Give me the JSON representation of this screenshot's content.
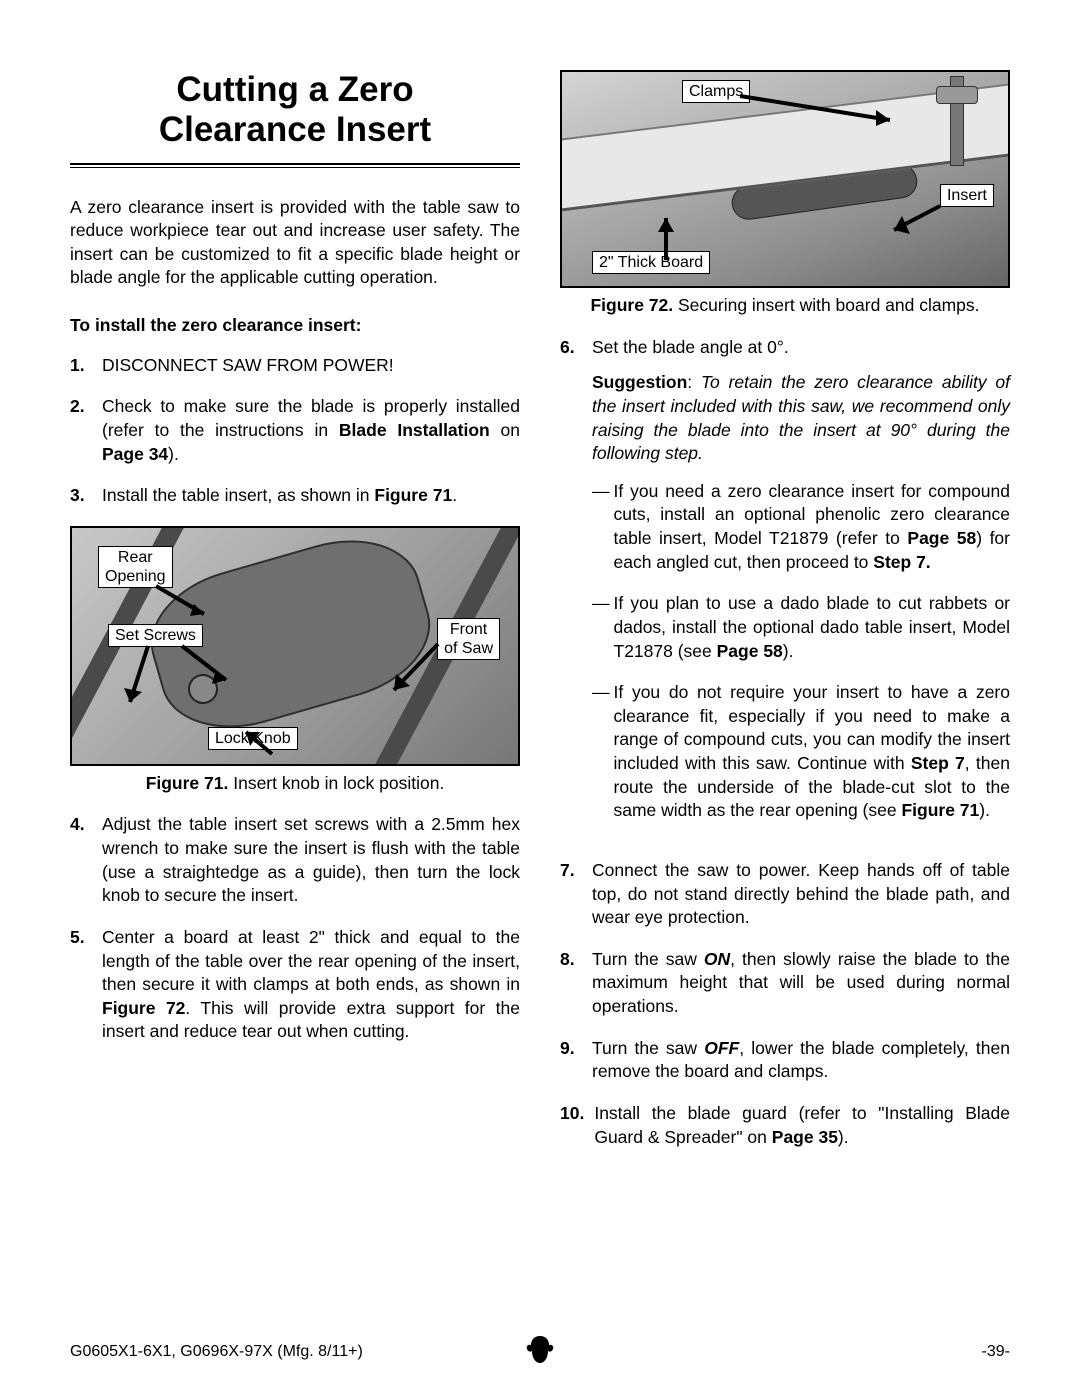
{
  "title_line1": "Cutting a Zero",
  "title_line2": "Clearance Insert",
  "intro": "A zero clearance insert is provided with the table saw to reduce workpiece tear out and increase user safety. The insert can be customized to fit a specific blade height or blade angle for the applicable cutting operation.",
  "lead": "To install the zero clearance insert:",
  "steps_left": [
    {
      "n": "1.",
      "html": "DISCONNECT SAW FROM POWER!"
    },
    {
      "n": "2.",
      "html": "Check to make sure the blade is properly installed (refer to the instructions in <b>Blade Installation</b> on <b>Page 34</b>)."
    },
    {
      "n": "3.",
      "html": "Install the table insert, as shown in <b>Figure 71</b>."
    }
  ],
  "fig71": {
    "labels": {
      "rear": "Rear\nOpening",
      "set": "Set Screws",
      "lock": "Lock Knob",
      "front": "Front\nof Saw"
    },
    "caption_b": "Figure 71.",
    "caption": " Insert knob in lock position."
  },
  "steps_left2": [
    {
      "n": "4.",
      "html": "Adjust the table insert set screws with a 2.5mm hex wrench to make sure the insert is flush with the table (use a straightedge as a guide), then turn the lock knob to secure the insert."
    },
    {
      "n": "5.",
      "html": "Center a board at least 2\" thick and equal to the length of the table over the rear opening of the insert, then secure it with clamps at both ends, as shown in <b>Figure 72</b>. This will provide extra support for the insert and reduce tear out when cutting."
    }
  ],
  "fig72": {
    "labels": {
      "clamps": "Clamps",
      "insert": "Insert",
      "board": "2\" Thick Board"
    },
    "caption_b": "Figure 72.",
    "caption": " Securing insert with board and clamps."
  },
  "step6": {
    "n": "6.",
    "html": "Set the blade angle at 0°."
  },
  "suggestion": "<b>Suggestion</b>: <i>To retain the zero clearance ability of the insert included with this saw, we recommend only raising the blade into the insert at 90° during the following step.</i>",
  "dashes": [
    "If you need a zero clearance insert for compound cuts, install an optional phenolic zero clearance table insert, Model T21879 (refer to <b>Page 58</b>) for each angled cut, then proceed to <b>Step 7.</b>",
    "If you plan to use a dado blade to cut rabbets or dados, install the optional dado table insert, Model T21878 (see <b>Page 58</b>).",
    "If you do not require your insert to have a zero clearance fit, especially if you need to make a range of compound cuts, you can modify the insert included with this saw. Continue with <b>Step 7</b>, then route the underside of the blade-cut slot to the same width as the rear opening (see <b>Figure 71</b>)."
  ],
  "steps_right": [
    {
      "n": "7.",
      "html": "Connect the saw to power. Keep hands off of table top, do not stand directly behind the blade path, and wear eye protection."
    },
    {
      "n": "8.",
      "html": "Turn the saw <b><i>ON</i></b>, then slowly raise the blade to the maximum height that will be used during normal operations."
    },
    {
      "n": "9.",
      "html": "Turn the saw <b><i>OFF</i></b>, lower the blade completely, then remove the board and clamps."
    },
    {
      "n": "10.",
      "html": "Install the blade guard (refer to \"Installing Blade Guard & Spreader\" on <b>Page 35</b>)."
    }
  ],
  "footer_left": "G0605X1-6X1, G0696X-97X (Mfg. 8/11+)",
  "footer_right": "-39-"
}
